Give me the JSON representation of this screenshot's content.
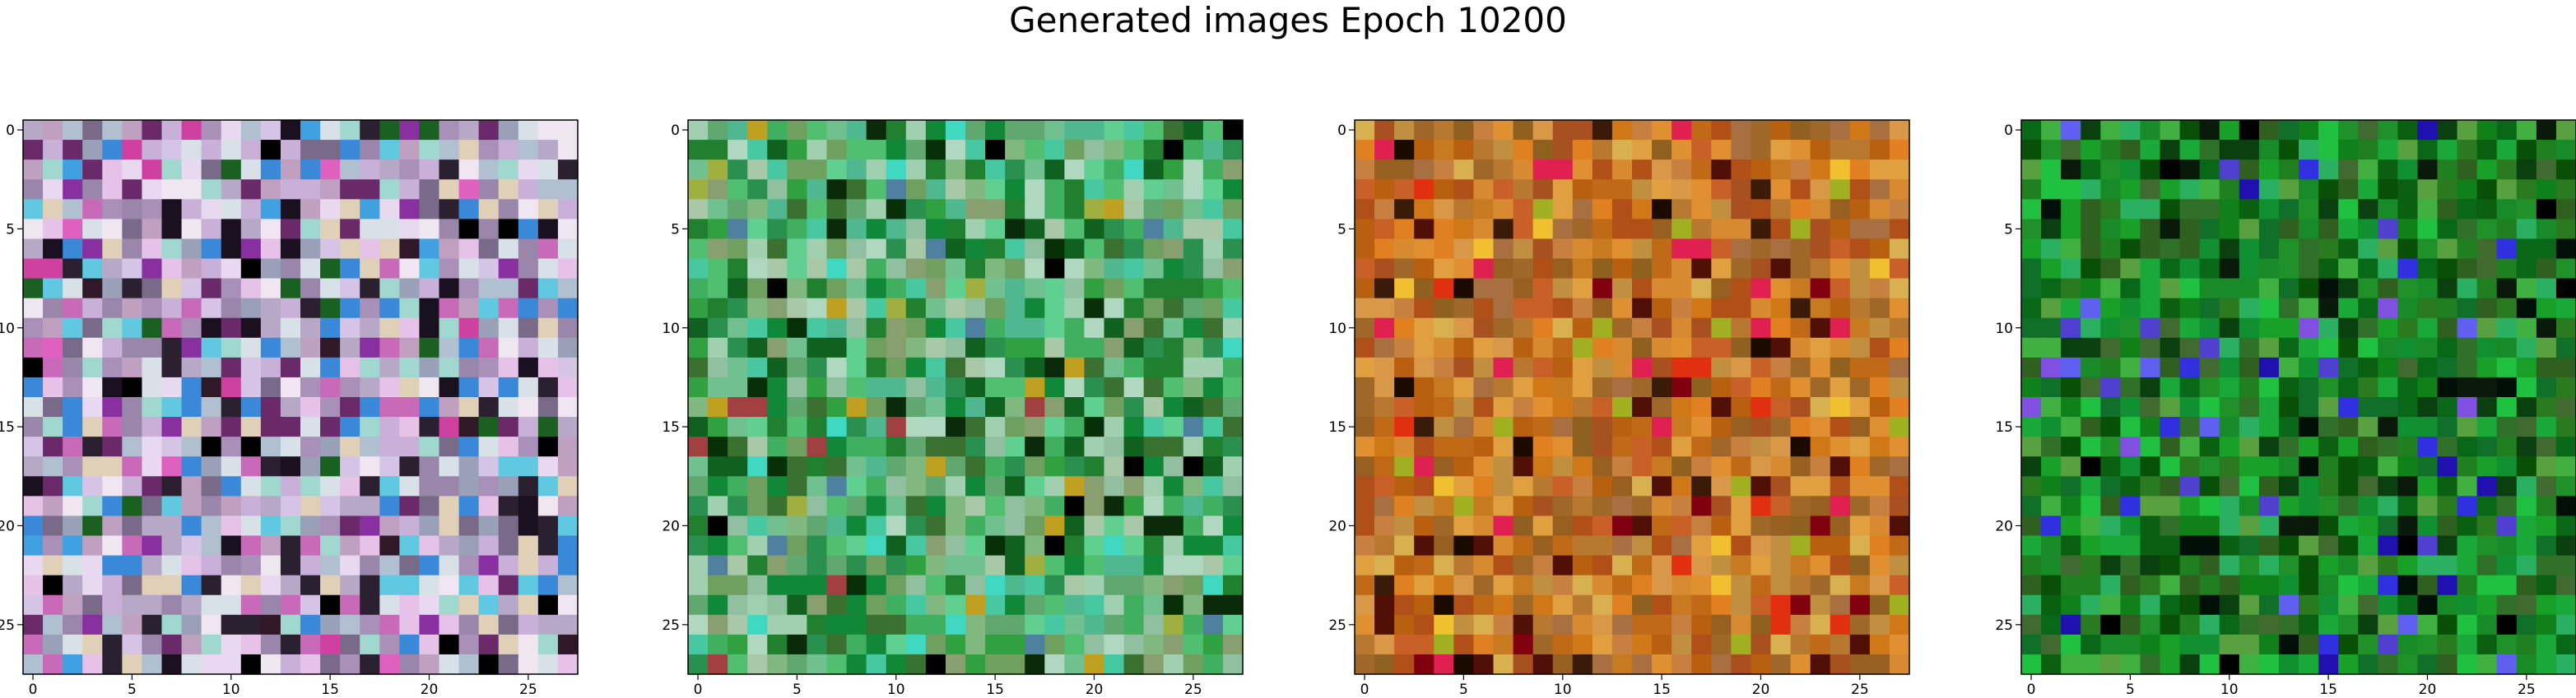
{
  "figure": {
    "title": "Generated images Epoch 10200"
  },
  "axes": {
    "x_ticks": [
      "0",
      "5",
      "10",
      "15",
      "20",
      "25"
    ],
    "y_ticks": [
      "0",
      "5",
      "10",
      "15",
      "20",
      "25"
    ]
  },
  "panels": [
    {
      "palette": [
        "#b8a8c8",
        "#d6c4e6",
        "#e8d9f0",
        "#a890b8",
        "#c8b0d8",
        "#f0e6f2",
        "#9a86aa",
        "#d8e0e8",
        "#e6c2e8",
        "#b0c0d0",
        "#7a6a8a",
        "#c86ab8",
        "#6a2a6a",
        "#3a88d8",
        "#60c8e0",
        "#2a2030",
        "#9aa0b8",
        "#c0a0c0",
        "#e0d0b8",
        "#a0d8d0"
      ],
      "dark": [
        "#000000",
        "#1a1020",
        "#301828"
      ],
      "accent": [
        "#d040a0",
        "#8830a0",
        "#40a0e0",
        "#1a6020",
        "#e060c0"
      ]
    },
    {
      "palette": [
        "#60a870",
        "#50c070",
        "#30a040",
        "#208030",
        "#70c090",
        "#90c0a0",
        "#a0d0b0",
        "#106020",
        "#40b060",
        "#80b880",
        "#2a9050",
        "#50b890",
        "#88a070",
        "#60d090",
        "#a8c8a8",
        "#108838",
        "#3a7030",
        "#70a060",
        "#b0d8c0",
        "#48c8a0"
      ],
      "dark": [
        "#000000",
        "#0a2a0a",
        "#083008"
      ],
      "accent": [
        "#a0b040",
        "#5080a0",
        "#c0a020",
        "#a04040",
        "#40d8c0"
      ]
    },
    {
      "palette": [
        "#c87a20",
        "#d88a30",
        "#b86010",
        "#a85020",
        "#e09030",
        "#c06a18",
        "#d07818",
        "#b87830",
        "#986020",
        "#e0a040",
        "#c88040",
        "#a06828",
        "#d8b050",
        "#b05018",
        "#c09040",
        "#e08020",
        "#a87040",
        "#c86028",
        "#906020",
        "#d89848"
      ],
      "dark": [
        "#1a0a00",
        "#3a1a08",
        "#501008"
      ],
      "accent": [
        "#e02050",
        "#f0c030",
        "#a0b020",
        "#e03010",
        "#800010"
      ]
    },
    {
      "palette": [
        "#108018",
        "#209028",
        "#0a6010",
        "#306020",
        "#18a028",
        "#40b040",
        "#085008",
        "#2a7a20",
        "#109030",
        "#1aa838",
        "#406a30",
        "#0a4010",
        "#20c040",
        "#208020",
        "#307028",
        "#10702a",
        "#58a040",
        "#086818",
        "#2ab060",
        "#188a28"
      ],
      "dark": [
        "#000000",
        "#0a1a0a",
        "#001008"
      ],
      "accent": [
        "#3030e0",
        "#5040d0",
        "#2010b0",
        "#8050e0",
        "#6060f0"
      ]
    }
  ]
}
